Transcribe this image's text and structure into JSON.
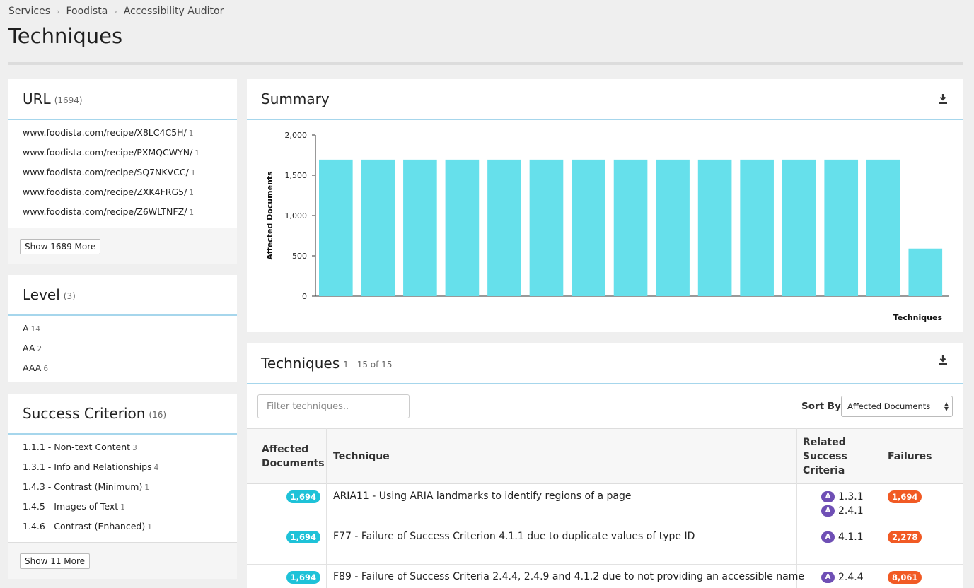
{
  "breadcrumb": [
    "Services",
    "Foodista",
    "Accessibility Auditor"
  ],
  "page_title": "Techniques",
  "url_facet": {
    "title": "URL",
    "count": "(1694)",
    "items": [
      {
        "label": "www.foodista.com/recipe/X8LC4C5H/",
        "n": "1"
      },
      {
        "label": "www.foodista.com/recipe/PXMQCWYN/",
        "n": "1"
      },
      {
        "label": "www.foodista.com/recipe/SQ7NKVCC/",
        "n": "1"
      },
      {
        "label": "www.foodista.com/recipe/ZXK4FRG5/",
        "n": "1"
      },
      {
        "label": "www.foodista.com/recipe/Z6WLTNFZ/",
        "n": "1"
      }
    ],
    "more_label": "Show 1689 More"
  },
  "level_facet": {
    "title": "Level",
    "count": "(3)",
    "items": [
      {
        "label": "A",
        "n": "14"
      },
      {
        "label": "AA",
        "n": "2"
      },
      {
        "label": "AAA",
        "n": "6"
      }
    ]
  },
  "criterion_facet": {
    "title": "Success Criterion",
    "count": "(16)",
    "items": [
      {
        "label": "1.1.1 - Non-text Content",
        "n": "3"
      },
      {
        "label": "1.3.1 - Info and Relationships",
        "n": "4"
      },
      {
        "label": "1.4.3 - Contrast (Minimum)",
        "n": "1"
      },
      {
        "label": "1.4.5 - Images of Text",
        "n": "1"
      },
      {
        "label": "1.4.6 - Contrast (Enhanced)",
        "n": "1"
      }
    ],
    "more_label": "Show 11 More"
  },
  "summary": {
    "title": "Summary"
  },
  "chart_data": {
    "type": "bar",
    "ylabel": "Affected Documents",
    "xlabel": "Techniques",
    "ylim": [
      0,
      2000
    ],
    "yticks": [
      "2,000",
      "1,500",
      "1,000",
      "500",
      "0"
    ],
    "ytick_values": [
      2000,
      1500,
      1000,
      500,
      0
    ],
    "values": [
      1694,
      1694,
      1694,
      1694,
      1694,
      1694,
      1694,
      1694,
      1694,
      1694,
      1694,
      1694,
      1694,
      1694,
      590
    ],
    "bar_color": "#66e0eb",
    "grid": false
  },
  "techniques": {
    "title": "Techniques",
    "range": "1 - 15 of 15",
    "filter_placeholder": "Filter techniques..",
    "sort_label": "Sort By",
    "sort_value": "Affected Documents",
    "headers": {
      "affected_1": "Affected",
      "affected_2": "Documents",
      "technique": "Technique",
      "related_1": "Related",
      "related_2": "Success",
      "related_3": "Criteria",
      "failures": "Failures"
    },
    "rows": [
      {
        "affected": "1,694",
        "technique": "ARIA11 - Using ARIA landmarks to identify regions of a page",
        "criteria": [
          {
            "level": "A",
            "code": "1.3.1"
          },
          {
            "level": "A",
            "code": "2.4.1"
          }
        ],
        "failures": "1,694"
      },
      {
        "affected": "1,694",
        "technique": "F77 - Failure of Success Criterion 4.1.1 due to duplicate values of type ID",
        "criteria": [
          {
            "level": "A",
            "code": "4.1.1"
          }
        ],
        "failures": "2,278"
      },
      {
        "affected": "1,694",
        "technique": "F89 - Failure of Success Criteria 2.4.4, 2.4.9 and 4.1.2 due to not providing an accessible name",
        "criteria": [
          {
            "level": "A",
            "code": "2.4.4"
          }
        ],
        "failures": "8,061"
      }
    ]
  },
  "colors": {
    "accent_rule": "#a6d6ec",
    "badge_cyan": "#1ec2d8",
    "badge_orange": "#f15a24",
    "level_purple": "#6f4fb5"
  }
}
